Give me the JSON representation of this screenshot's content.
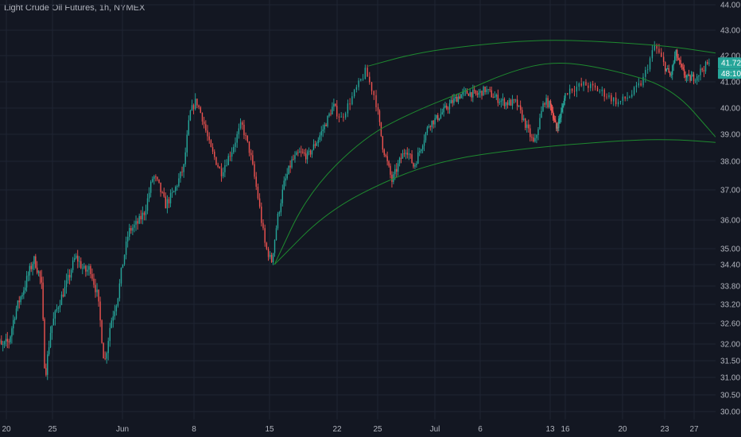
{
  "title": "Light Crude Oil Futures, 1h, NYMEX",
  "chart_data": {
    "type": "candlestick",
    "symbol": "Light Crude Oil Futures",
    "interval": "1h",
    "exchange": "NYMEX",
    "ylim": [
      29.8,
      44.2
    ],
    "y_ticks": [
      "44.00",
      "43.00",
      "42.00",
      "41.00",
      "40.00",
      "39.00",
      "38.00",
      "37.00",
      "36.00",
      "35.00",
      "34.40",
      "33.80",
      "33.20",
      "32.60",
      "32.00",
      "31.50",
      "31.00",
      "30.50",
      "30.00"
    ],
    "y_tick_values": [
      44.0,
      43.0,
      42.0,
      41.0,
      40.0,
      39.0,
      38.0,
      37.0,
      36.0,
      35.0,
      34.4,
      33.8,
      33.2,
      32.6,
      32.0,
      31.5,
      31.0,
      30.5,
      30.0
    ],
    "x_ticks": [
      {
        "label": "20",
        "day": 0
      },
      {
        "label": "25",
        "day": 5
      },
      {
        "label": "Jun",
        "day": 12
      },
      {
        "label": "8",
        "day": 19
      },
      {
        "label": "15",
        "day": 26
      },
      {
        "label": "22",
        "day": 33
      },
      {
        "label": "25",
        "day": 36
      },
      {
        "label": "Jul",
        "day": 42
      },
      {
        "label": "6",
        "day": 47
      },
      {
        "label": "13",
        "day": 54
      },
      {
        "label": "16",
        "day": 57
      },
      {
        "label": "20",
        "day": 61
      },
      {
        "label": "23",
        "day": 64
      },
      {
        "label": "27",
        "day": 68
      }
    ],
    "price_path": [
      [
        -1.5,
        32.4
      ],
      [
        -0.5,
        31.9
      ],
      [
        0.3,
        32.1
      ],
      [
        1,
        33.0
      ],
      [
        2,
        33.8
      ],
      [
        3,
        34.6
      ],
      [
        3.8,
        33.9
      ],
      [
        4.2,
        31.0
      ],
      [
        4.8,
        32.4
      ],
      [
        5.6,
        33.2
      ],
      [
        6.6,
        34.0
      ],
      [
        7.3,
        34.7
      ],
      [
        8.2,
        34.2
      ],
      [
        8.8,
        34.3
      ],
      [
        9.5,
        33.5
      ],
      [
        10.2,
        31.4
      ],
      [
        10.8,
        32.6
      ],
      [
        11.5,
        33.4
      ],
      [
        12,
        34.4
      ],
      [
        12.6,
        35.6
      ],
      [
        13.5,
        35.9
      ],
      [
        14.2,
        36.3
      ],
      [
        15,
        37.5
      ],
      [
        15.5,
        37.2
      ],
      [
        16.2,
        36.5
      ],
      [
        17,
        36.9
      ],
      [
        18,
        37.8
      ],
      [
        18.6,
        39.8
      ],
      [
        19.2,
        40.3
      ],
      [
        19.8,
        39.6
      ],
      [
        20.5,
        38.5
      ],
      [
        21.5,
        37.6
      ],
      [
        22.5,
        38.4
      ],
      [
        23.4,
        39.4
      ],
      [
        24.2,
        38.3
      ],
      [
        25,
        36.6
      ],
      [
        25.6,
        35.1
      ],
      [
        26.2,
        34.5
      ],
      [
        26.8,
        36.0
      ],
      [
        27.5,
        37.2
      ],
      [
        28.3,
        38.0
      ],
      [
        29.1,
        38.3
      ],
      [
        30,
        38.2
      ],
      [
        31,
        38.8
      ],
      [
        31.8,
        39.4
      ],
      [
        32.6,
        40.1
      ],
      [
        33.3,
        39.6
      ],
      [
        34.2,
        40.5
      ],
      [
        35.1,
        41.4
      ],
      [
        35.8,
        40.4
      ],
      [
        36.5,
        38.6
      ],
      [
        37.5,
        37.3
      ],
      [
        38.3,
        38.0
      ],
      [
        39,
        38.5
      ],
      [
        39.8,
        37.8
      ],
      [
        40.6,
        38.6
      ],
      [
        41.4,
        39.4
      ],
      [
        42.2,
        39.6
      ],
      [
        43,
        39.9
      ],
      [
        43.8,
        40.2
      ],
      [
        44.8,
        40.5
      ],
      [
        45.7,
        40.6
      ],
      [
        46.6,
        40.5
      ],
      [
        47.5,
        40.7
      ],
      [
        48.5,
        40.4
      ],
      [
        49.5,
        40.2
      ],
      [
        50.6,
        40.2
      ],
      [
        51.6,
        39.3
      ],
      [
        52.4,
        38.6
      ],
      [
        53.4,
        40.3
      ],
      [
        54.3,
        40.0
      ],
      [
        55.2,
        39.2
      ],
      [
        56.2,
        39.8
      ],
      [
        57.2,
        40.7
      ],
      [
        58.4,
        40.9
      ],
      [
        59.6,
        40.6
      ],
      [
        60.7,
        40.2
      ],
      [
        61.6,
        40.5
      ],
      [
        62.4,
        41.0
      ],
      [
        63.3,
        42.4
      ],
      [
        64,
        41.6
      ],
      [
        64.8,
        41.2
      ],
      [
        65.5,
        42.1
      ],
      [
        66.4,
        41.4
      ],
      [
        67.2,
        41.1
      ],
      [
        68.1,
        41.2
      ],
      [
        68.8,
        41.5
      ],
      [
        69.4,
        41.72
      ]
    ],
    "trend_curves": [
      {
        "points": [
          [
            26.5,
            34.4
          ],
          [
            30,
            36.9
          ],
          [
            35,
            38.9
          ],
          [
            40,
            39.9
          ],
          [
            45,
            40.6
          ],
          [
            50,
            41.4
          ],
          [
            55,
            41.8
          ],
          [
            60,
            41.5
          ],
          [
            65,
            40.8
          ],
          [
            70,
            38.9
          ]
        ]
      },
      {
        "points": [
          [
            26.5,
            34.4
          ],
          [
            32,
            36.3
          ],
          [
            38,
            37.5
          ],
          [
            44,
            38.1
          ],
          [
            50,
            38.4
          ],
          [
            56,
            38.6
          ],
          [
            62,
            38.8
          ],
          [
            66,
            38.8
          ],
          [
            70,
            38.7
          ]
        ]
      },
      {
        "points": [
          [
            35.3,
            41.6
          ],
          [
            40,
            42.1
          ],
          [
            46,
            42.4
          ],
          [
            52,
            42.6
          ],
          [
            58,
            42.6
          ],
          [
            64,
            42.4
          ],
          [
            70,
            42.1
          ]
        ]
      }
    ],
    "last_price": "41.72",
    "countdown": "48:10",
    "colors": {
      "up": "#26a69a",
      "down": "#ef5350",
      "curve": "#1e8a2f",
      "badge_bg": "#26a69a",
      "grid": "#1f2433"
    }
  }
}
